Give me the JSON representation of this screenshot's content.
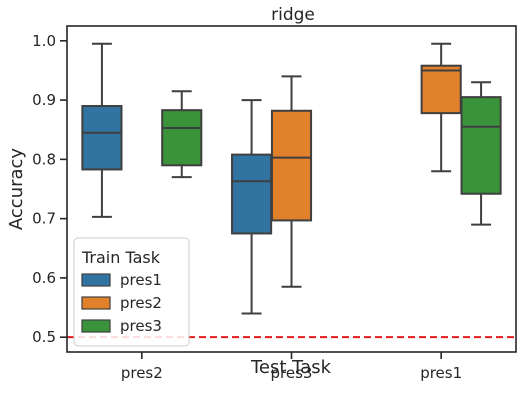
{
  "chart_data": {
    "type": "box",
    "title": "ridge",
    "xlabel": "Test Task",
    "ylabel": "Accuracy",
    "ylim": [
      0.475,
      1.025
    ],
    "yticks": [
      0.5,
      0.6,
      0.7,
      0.8,
      0.9,
      1.0
    ],
    "ytick_labels": [
      "0.5",
      "0.6",
      "0.7",
      "0.8",
      "0.9",
      "1.0"
    ],
    "categories": [
      "pres2",
      "pres3",
      "pres1"
    ],
    "legend": {
      "title": "Train Task",
      "position": "lower-left"
    },
    "reference_line": {
      "y": 0.5,
      "color": "#e41a1c",
      "style": "dashed"
    },
    "grid": false,
    "series": [
      {
        "name": "pres1",
        "color": "#3274a1",
        "boxes": [
          {
            "category": "pres2",
            "whisker_low": 0.703,
            "q1": 0.783,
            "median": 0.845,
            "q3": 0.89,
            "whisker_high": 0.995
          },
          {
            "category": "pres3",
            "whisker_low": 0.54,
            "q1": 0.675,
            "median": 0.763,
            "q3": 0.808,
            "whisker_high": 0.9
          },
          null
        ]
      },
      {
        "name": "pres2",
        "color": "#e1812c",
        "boxes": [
          null,
          {
            "category": "pres3",
            "whisker_low": 0.585,
            "q1": 0.697,
            "median": 0.803,
            "q3": 0.882,
            "whisker_high": 0.94
          },
          {
            "category": "pres1",
            "whisker_low": 0.78,
            "q1": 0.878,
            "median": 0.95,
            "q3": 0.958,
            "whisker_high": 0.995
          }
        ]
      },
      {
        "name": "pres3",
        "color": "#3a923a",
        "boxes": [
          {
            "category": "pres2",
            "whisker_low": 0.77,
            "q1": 0.79,
            "median": 0.853,
            "q3": 0.883,
            "whisker_high": 0.915
          },
          null,
          {
            "category": "pres1",
            "whisker_low": 0.69,
            "q1": 0.742,
            "median": 0.855,
            "q3": 0.905,
            "whisker_high": 0.93
          }
        ]
      }
    ]
  }
}
